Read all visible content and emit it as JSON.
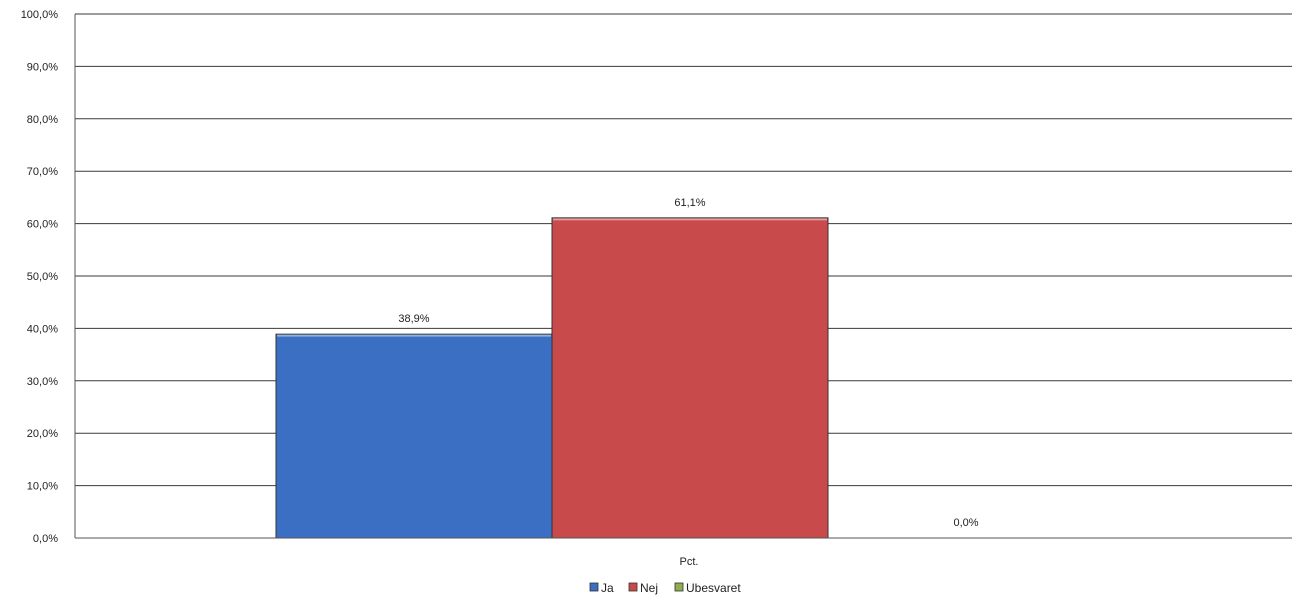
{
  "chart_data": {
    "type": "bar",
    "categories": [
      "Pct."
    ],
    "series": [
      {
        "name": "Ja",
        "values": [
          38.9
        ],
        "label": "38,9%",
        "color": "#3a6fc4"
      },
      {
        "name": "Nej",
        "values": [
          61.1
        ],
        "label": "61,1%",
        "color": "#c94a4a"
      },
      {
        "name": "Ubesvaret",
        "values": [
          0.0
        ],
        "label": "0,0%",
        "color": "#8fae4f"
      }
    ],
    "yticks": [
      0,
      10,
      20,
      30,
      40,
      50,
      60,
      70,
      80,
      90,
      100
    ],
    "ytick_labels": [
      "0,0%",
      "10,0%",
      "20,0%",
      "30,0%",
      "40,0%",
      "50,0%",
      "60,0%",
      "70,0%",
      "80,0%",
      "90,0%",
      "100,0%"
    ],
    "ylim": [
      0,
      100
    ],
    "xlabel": "",
    "ylabel": "",
    "title": "",
    "grid": true,
    "legend_position": "bottom"
  }
}
